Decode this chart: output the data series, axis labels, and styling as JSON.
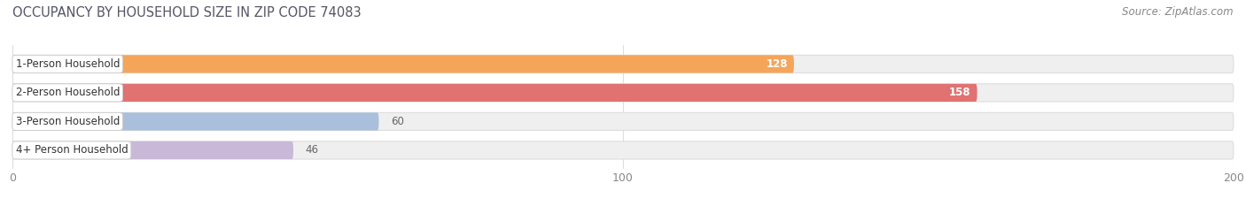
{
  "title": "OCCUPANCY BY HOUSEHOLD SIZE IN ZIP CODE 74083",
  "source": "Source: ZipAtlas.com",
  "categories": [
    "1-Person Household",
    "2-Person Household",
    "3-Person Household",
    "4+ Person Household"
  ],
  "values": [
    128,
    158,
    60,
    46
  ],
  "bar_colors": [
    "#F5A55A",
    "#E07272",
    "#AABFDB",
    "#C9B8D8"
  ],
  "bar_bg_color": "#EFEFEF",
  "bar_edge_color": "#DDDDDD",
  "xlim": [
    0,
    200
  ],
  "xticks": [
    0,
    100,
    200
  ],
  "bar_height": 0.62,
  "title_fontsize": 10.5,
  "source_fontsize": 8.5,
  "label_fontsize": 8.5,
  "value_fontsize": 8.5,
  "tick_fontsize": 9,
  "background_color": "#FFFFFF",
  "plot_bg_color": "#FFFFFF",
  "grid_color": "#DDDDDD",
  "label_box_color": "#FFFFFF",
  "label_box_edge": "#CCCCCC",
  "title_color": "#555566",
  "source_color": "#888888",
  "tick_color": "#888888",
  "vline_color": "#BBBBBB"
}
